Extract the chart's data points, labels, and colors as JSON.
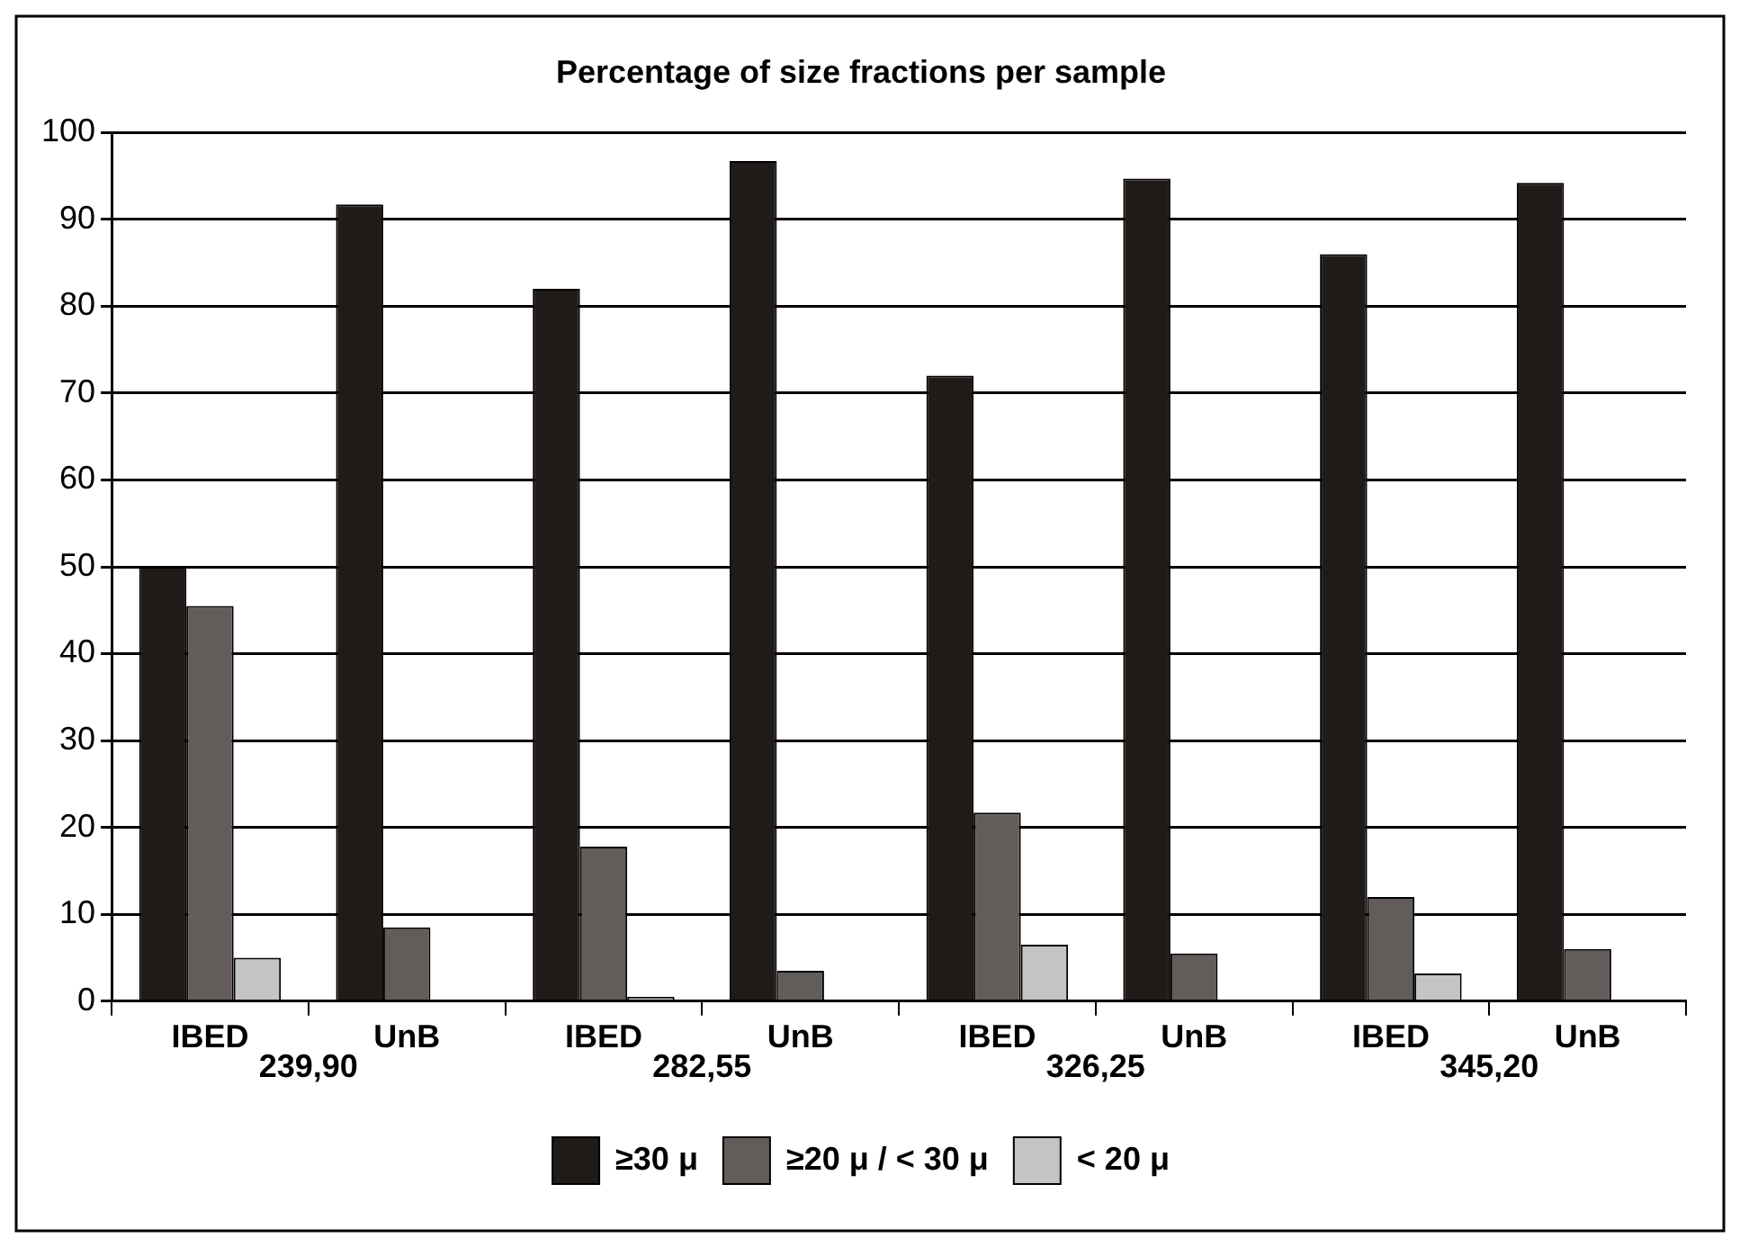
{
  "chart_data": {
    "type": "bar",
    "title": "Percentage of size fractions per sample",
    "categories": [
      "IBED",
      "UnB",
      "IBED",
      "UnB",
      "IBED",
      "UnB",
      "IBED",
      "UnB"
    ],
    "series": [
      {
        "name": "≥30 μ",
        "color": "#201a18",
        "values": [
          50,
          91.7,
          82,
          96.7,
          72,
          94.7,
          86,
          94.2
        ]
      },
      {
        "name": "≥20 μ / < 30 μ",
        "color": "#625c5a",
        "values": [
          45.5,
          8.5,
          17.8,
          3.5,
          21.7,
          5.5,
          12,
          6
        ]
      },
      {
        "name": "< 20 μ",
        "color": "#c4c4c4",
        "values": [
          5,
          null,
          0.5,
          null,
          6.5,
          null,
          3.2,
          null
        ]
      }
    ],
    "annotations": [
      "239,90",
      "282,55",
      "326,25",
      "345,20"
    ],
    "ylim": [
      0,
      100
    ],
    "yticks": [
      0,
      10,
      20,
      30,
      40,
      50,
      60,
      70,
      80,
      90,
      100
    ],
    "grid": "y",
    "legend": "bottom"
  }
}
